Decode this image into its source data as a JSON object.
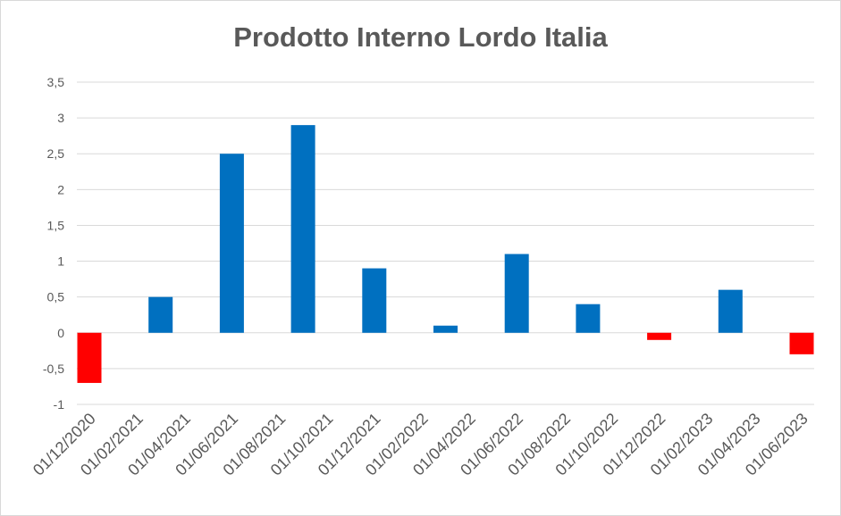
{
  "chart_data": {
    "type": "bar",
    "title": "Prodotto Interno Lordo Italia",
    "xlabel": "",
    "ylabel": "",
    "ylim": [
      -1,
      3.5
    ],
    "yticks": [
      "3,5",
      "3",
      "2,5",
      "2",
      "1,5",
      "1",
      "0,5",
      "0",
      "-0,5",
      "-1"
    ],
    "ytick_values": [
      3.5,
      3,
      2.5,
      2,
      1.5,
      1,
      0.5,
      0,
      -0.5,
      -1
    ],
    "categories": [
      "01/12/2020",
      "01/02/2021",
      "01/04/2021",
      "01/06/2021",
      "01/08/2021",
      "01/10/2021",
      "01/12/2021",
      "01/02/2022",
      "01/04/2022",
      "01/06/2022",
      "01/08/2022",
      "01/10/2022",
      "01/12/2022",
      "01/02/2023",
      "01/04/2023",
      "01/06/2023"
    ],
    "bars": [
      {
        "category": "01/12/2020",
        "value": -0.7
      },
      {
        "category": "01/04/2021",
        "value": 0.5
      },
      {
        "category": "01/08/2021",
        "value": 2.5
      },
      {
        "category": "01/12/2021",
        "value": 2.9
      },
      {
        "category": "01/02/2022",
        "value": 0.9
      },
      {
        "category": "01/06/2022",
        "value": 0.1
      },
      {
        "category": "01/10/2022",
        "value": 1.1
      },
      {
        "category": "01/12/2022",
        "value": 0.4
      },
      {
        "category": "01/04/2023",
        "value": -0.1
      },
      {
        "category": "01/06/2023",
        "value": 0.6
      },
      {
        "category": "01/06/2023",
        "value": -0.3
      }
    ],
    "grid": true,
    "legend": "none",
    "colors": {
      "positive": "#0070c0",
      "negative": "#ff0000",
      "grid": "#d9d9d9",
      "text": "#595959"
    }
  }
}
